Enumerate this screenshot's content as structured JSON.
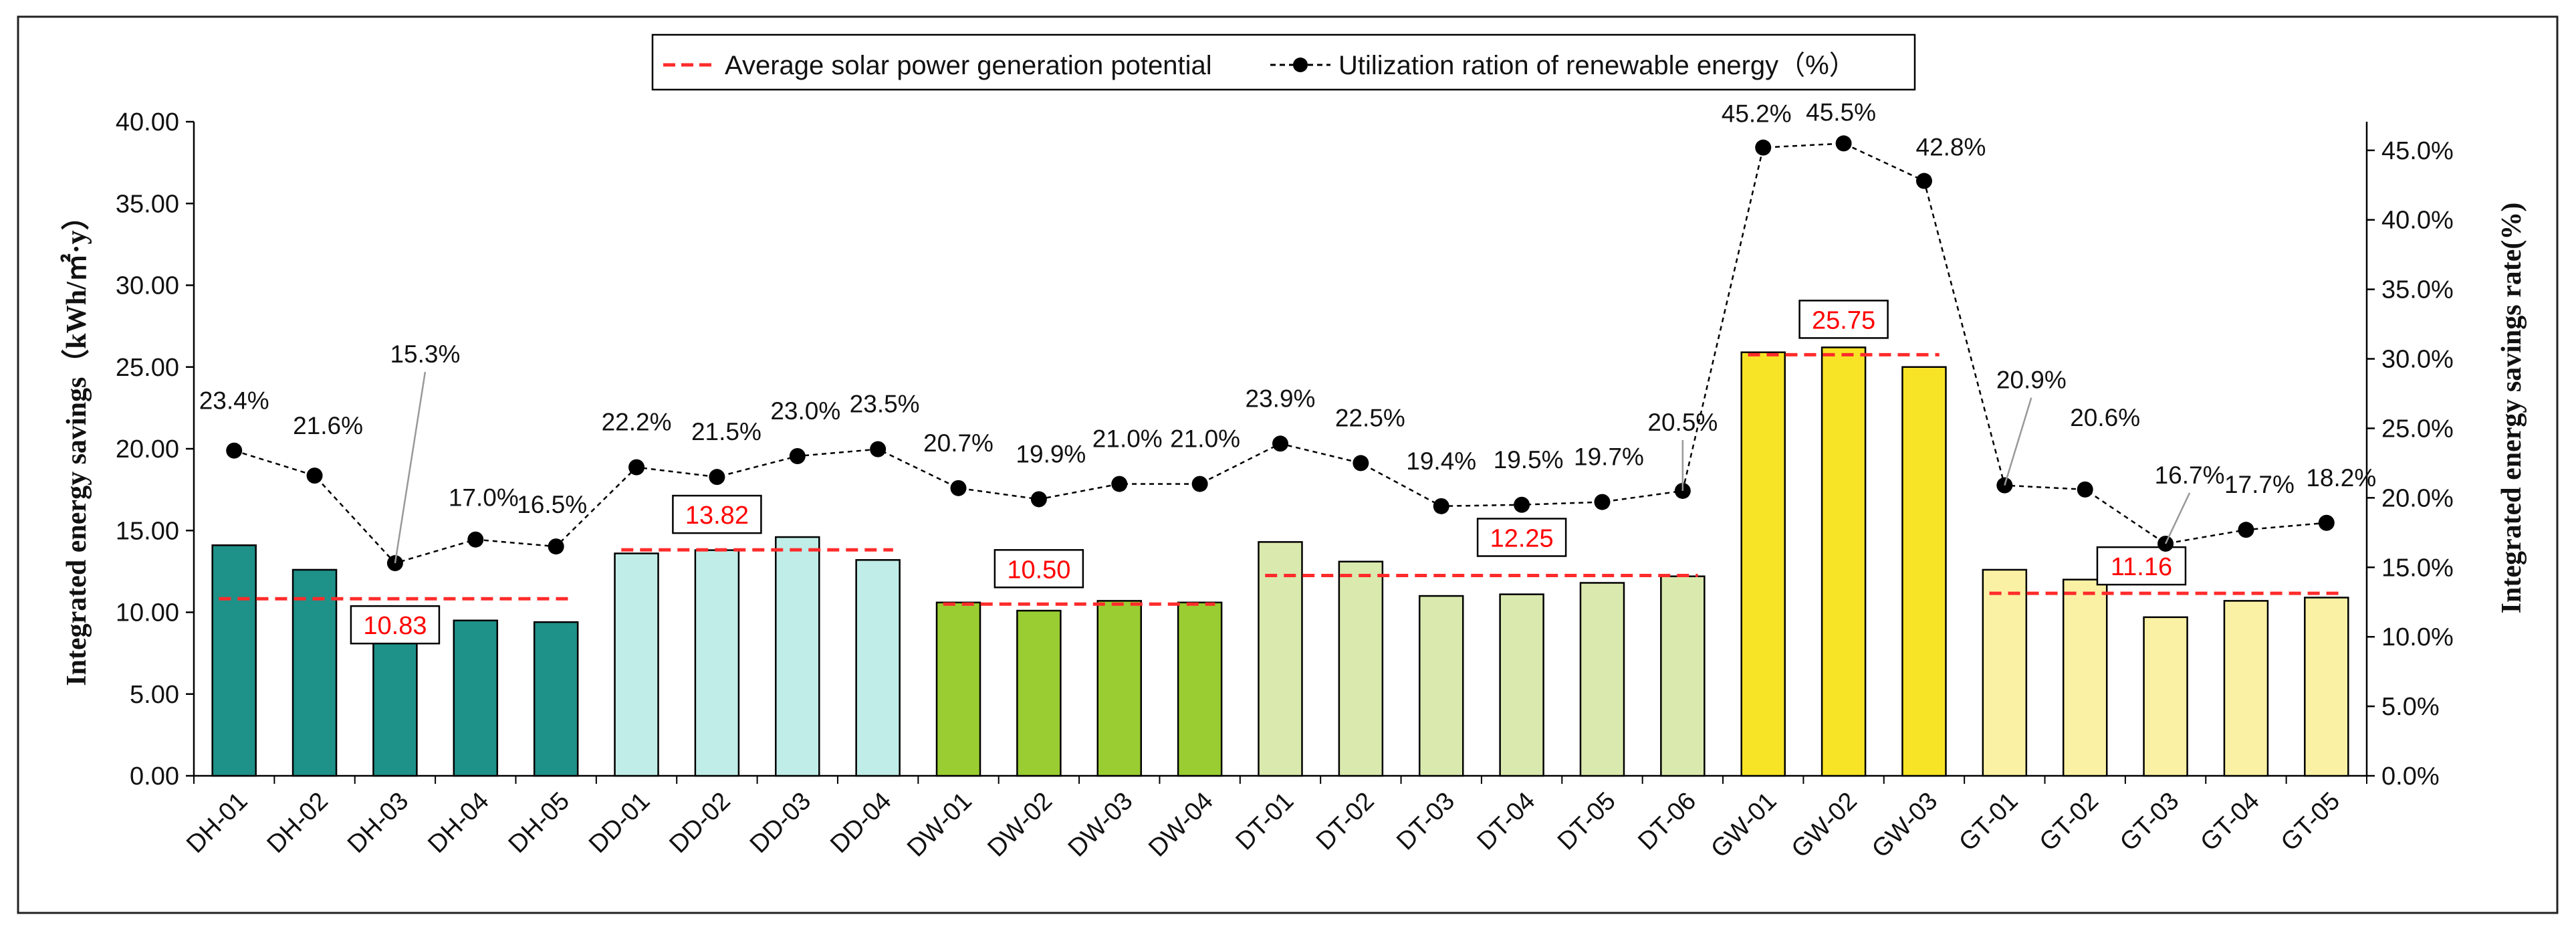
{
  "chart_data": {
    "type": "bar+line",
    "categories": [
      "DH-01",
      "DH-02",
      "DH-03",
      "DH-04",
      "DH-05",
      "DD-01",
      "DD-02",
      "DD-03",
      "DD-04",
      "DW-01",
      "DW-02",
      "DW-03",
      "DW-04",
      "DT-01",
      "DT-02",
      "DT-03",
      "DT-04",
      "DT-05",
      "DT-06",
      "GW-01",
      "GW-02",
      "GW-03",
      "GT-01",
      "GT-02",
      "GT-03",
      "GT-04",
      "GT-05"
    ],
    "groups": [
      {
        "name": "DH",
        "color": "#1e9189",
        "start": 0,
        "end": 4
      },
      {
        "name": "DD",
        "color": "#c0ede8",
        "start": 5,
        "end": 8
      },
      {
        "name": "DW",
        "color": "#9acd32",
        "start": 9,
        "end": 12
      },
      {
        "name": "DT",
        "color": "#dae9ae",
        "start": 13,
        "end": 18
      },
      {
        "name": "GW",
        "color": "#f7e426",
        "start": 19,
        "end": 21
      },
      {
        "name": "GT",
        "color": "#fbf1a4",
        "start": 22,
        "end": 26
      }
    ],
    "bar_values": [
      14.1,
      12.6,
      8.5,
      9.5,
      9.4,
      13.6,
      13.8,
      14.6,
      13.2,
      10.6,
      10.1,
      10.7,
      10.6,
      14.3,
      13.1,
      11.0,
      11.1,
      11.8,
      12.2,
      25.9,
      26.2,
      25.0,
      12.6,
      12.0,
      9.7,
      10.7,
      10.9
    ],
    "rate_values": [
      23.4,
      21.6,
      15.3,
      17.0,
      16.5,
      22.2,
      21.5,
      23.0,
      23.5,
      20.7,
      19.9,
      21.0,
      21.0,
      23.9,
      22.5,
      19.4,
      19.5,
      19.7,
      20.5,
      45.2,
      45.5,
      42.8,
      20.9,
      20.6,
      16.7,
      17.7,
      18.2
    ],
    "rate_labels": [
      "23.4%",
      "21.6%",
      "15.3%",
      "17.0%",
      "16.5%",
      "22.2%",
      "21.5%",
      "23.0%",
      "23.5%",
      "20.7%",
      "19.9%",
      "21.0%",
      "21.0%",
      "23.9%",
      "22.5%",
      "19.4%",
      "19.5%",
      "19.7%",
      "20.5%",
      "45.2%",
      "45.5%",
      "42.8%",
      "20.9%",
      "20.6%",
      "16.7%",
      "17.7%",
      "18.2%"
    ],
    "averages": [
      {
        "group": "DH",
        "value": 10.83,
        "label": "10.83"
      },
      {
        "group": "DD",
        "value": 13.82,
        "label": "13.82"
      },
      {
        "group": "DW",
        "value": 10.5,
        "label": "10.50"
      },
      {
        "group": "DT",
        "value": 12.25,
        "label": "12.25"
      },
      {
        "group": "GW",
        "value": 25.75,
        "label": "25.75"
      },
      {
        "group": "GT",
        "value": 11.16,
        "label": "11.16"
      }
    ],
    "y_left": {
      "label": "Integrated energy savings（kWh/㎡·y）",
      "ylim": [
        0,
        40
      ],
      "ticks": [
        "0.00",
        "5.00",
        "10.00",
        "15.00",
        "20.00",
        "25.00",
        "30.00",
        "35.00",
        "40.00"
      ]
    },
    "y_right": {
      "label": "Integrated energy savings rate(%)",
      "ylim": [
        0,
        47.06
      ],
      "ticks": [
        "0.0%",
        "5.0%",
        "10.0%",
        "15.0%",
        "20.0%",
        "25.0%",
        "30.0%",
        "35.0%",
        "40.0%",
        "45.0%"
      ]
    },
    "legend": {
      "position": "top-center",
      "items": [
        {
          "label": "Average solar power generation potential",
          "style": "dashed-red"
        },
        {
          "label": "Utilization ration of renewable energy（%）",
          "style": "dashed-black-dot"
        }
      ]
    },
    "colors": {
      "average_line": "#ff2b2b",
      "rate_line": "#000000",
      "bar_outline": "#000000"
    },
    "grid": false
  }
}
